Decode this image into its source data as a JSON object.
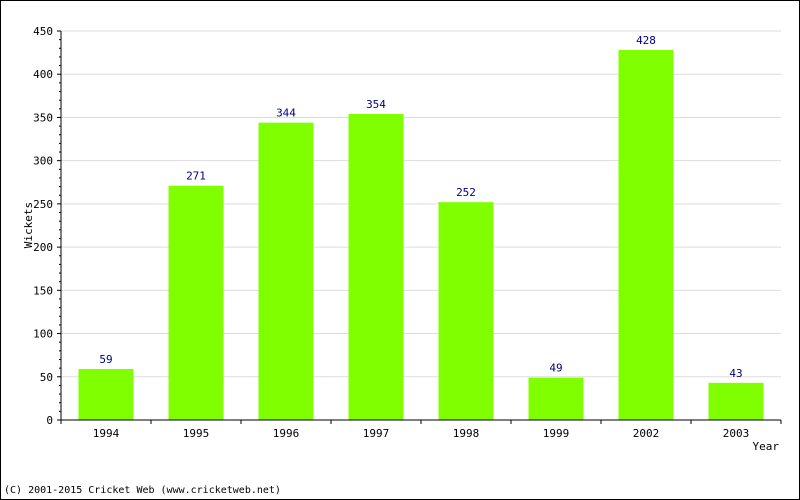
{
  "chart_data": {
    "type": "bar",
    "categories": [
      "1994",
      "1995",
      "1996",
      "1997",
      "1998",
      "1999",
      "2002",
      "2003"
    ],
    "values": [
      59,
      271,
      344,
      354,
      252,
      49,
      428,
      43
    ],
    "data_labels": [
      "59",
      "271",
      "344",
      "354",
      "252",
      "49",
      "428",
      "43"
    ],
    "yticks": [
      "0",
      "50",
      "100",
      "150",
      "200",
      "250",
      "300",
      "350",
      "400",
      "450"
    ],
    "ylim": [
      0,
      450
    ],
    "xlabel": "Year",
    "ylabel": "Wickets",
    "grid": true,
    "bar_color": "#80ff00",
    "label_color": "#000080"
  },
  "footer": {
    "text": "(C) 2001-2015 Cricket Web (www.cricketweb.net)"
  }
}
